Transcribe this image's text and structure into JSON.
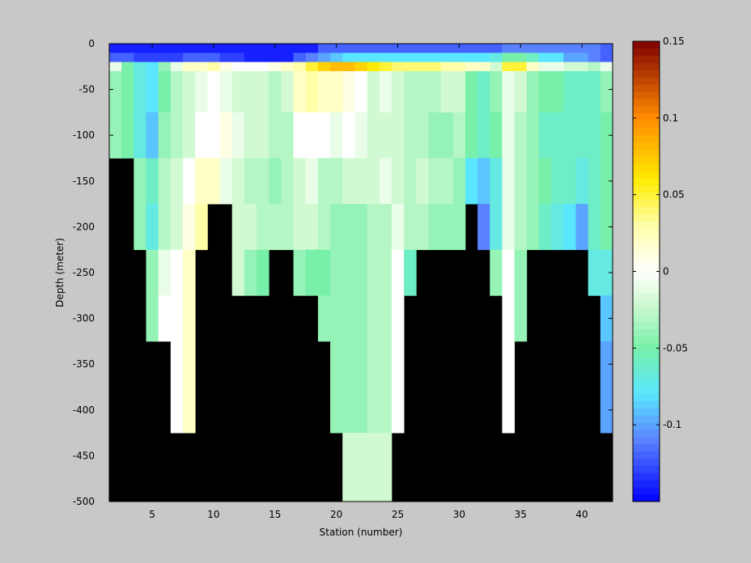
{
  "chart_data": {
    "type": "heatmap",
    "title": "",
    "xlabel": "Station (number)",
    "ylabel": "Depth (meter)",
    "xlim": [
      1.5,
      42.5
    ],
    "ylim": [
      -500,
      0
    ],
    "xticks": [
      5,
      10,
      15,
      20,
      25,
      30,
      35,
      40
    ],
    "yticks": [
      0,
      -50,
      -100,
      -150,
      -200,
      -250,
      -300,
      -350,
      -400,
      -450,
      -500
    ],
    "stations": [
      2,
      3,
      4,
      5,
      6,
      7,
      8,
      9,
      10,
      11,
      12,
      13,
      14,
      15,
      16,
      17,
      18,
      19,
      20,
      21,
      22,
      23,
      24,
      25,
      26,
      27,
      28,
      29,
      30,
      31,
      32,
      33,
      34,
      35,
      36,
      37,
      38,
      39,
      40,
      41,
      42
    ],
    "bottom_depths": [
      -125,
      -125,
      -200,
      -300,
      -300,
      -400,
      -200,
      -150,
      -150,
      -200,
      -250,
      -250,
      -200,
      -200,
      -250,
      -250,
      -300,
      -400,
      -400,
      -500,
      -500,
      -500,
      -500,
      -400,
      -250,
      -200,
      -200,
      -200,
      -150,
      -150,
      -200,
      -250,
      -400,
      -300,
      -200,
      -200,
      -200,
      -200,
      -400,
      -400,
      -400
    ],
    "depth_bins": [
      -5,
      -15,
      -25,
      -50,
      -100,
      -150,
      -200,
      -250,
      -300,
      -350,
      -400,
      -450,
      -500
    ],
    "bin_edges": [
      0,
      -10,
      -20,
      -30,
      -75,
      -125,
      -175,
      -225,
      -275,
      -325,
      -375,
      -425,
      -475,
      -500
    ],
    "values": [
      [
        -0.14,
        -0.14,
        -0.14,
        -0.14,
        -0.14,
        -0.14,
        -0.14,
        -0.14,
        -0.14,
        -0.14,
        -0.14,
        -0.14,
        -0.14,
        -0.14,
        -0.14,
        -0.14,
        -0.14,
        -0.12,
        -0.12,
        -0.12,
        -0.12,
        -0.12,
        -0.12,
        -0.12,
        -0.12,
        -0.12,
        -0.12,
        -0.12,
        -0.12,
        -0.12,
        -0.12,
        -0.12,
        -0.11,
        -0.11,
        -0.11,
        -0.11,
        -0.11,
        -0.11,
        -0.11,
        -0.11,
        -0.12
      ],
      [
        -0.12,
        -0.12,
        -0.13,
        -0.13,
        -0.13,
        -0.13,
        -0.12,
        -0.12,
        -0.12,
        -0.13,
        -0.13,
        -0.14,
        -0.14,
        -0.14,
        -0.14,
        -0.12,
        -0.11,
        -0.1,
        -0.09,
        -0.08,
        -0.08,
        -0.08,
        -0.08,
        -0.08,
        -0.08,
        -0.08,
        -0.08,
        -0.08,
        -0.08,
        -0.08,
        -0.08,
        -0.07,
        -0.05,
        -0.05,
        -0.06,
        -0.08,
        -0.08,
        -0.1,
        -0.1,
        -0.11,
        -0.12
      ],
      [
        -0.01,
        -0.05,
        -0.07,
        -0.08,
        -0.04,
        -0.01,
        0.02,
        0.02,
        0.03,
        0.01,
        0.0,
        0.0,
        0.0,
        0.01,
        0.02,
        0.03,
        0.05,
        0.07,
        0.08,
        0.08,
        0.07,
        0.06,
        0.05,
        0.04,
        0.04,
        0.04,
        0.04,
        0.03,
        0.03,
        0.02,
        0.02,
        -0.02,
        0.05,
        0.05,
        0.02,
        -0.01,
        -0.01,
        -0.02,
        -0.02,
        -0.03,
        -0.01
      ],
      [
        -0.04,
        -0.05,
        -0.07,
        -0.08,
        -0.05,
        -0.03,
        -0.02,
        -0.01,
        0.0,
        -0.01,
        -0.02,
        -0.02,
        -0.02,
        -0.03,
        -0.02,
        0.02,
        0.03,
        0.02,
        0.02,
        0.01,
        0.0,
        -0.02,
        -0.01,
        -0.02,
        -0.03,
        -0.03,
        -0.03,
        -0.02,
        -0.02,
        -0.05,
        -0.06,
        -0.04,
        -0.01,
        -0.02,
        -0.04,
        -0.05,
        -0.05,
        -0.06,
        -0.06,
        -0.06,
        -0.04
      ],
      [
        -0.04,
        -0.05,
        -0.07,
        -0.09,
        -0.04,
        -0.03,
        -0.02,
        0.0,
        0.0,
        0.01,
        -0.01,
        -0.02,
        -0.02,
        -0.03,
        -0.03,
        0.0,
        0.0,
        0.0,
        -0.01,
        0.0,
        -0.01,
        -0.02,
        -0.02,
        -0.02,
        -0.03,
        -0.03,
        -0.04,
        -0.04,
        -0.03,
        -0.05,
        -0.06,
        -0.05,
        -0.01,
        -0.03,
        -0.04,
        -0.06,
        -0.06,
        -0.06,
        -0.06,
        -0.06,
        -0.05
      ],
      [
        null,
        null,
        -0.04,
        -0.06,
        -0.03,
        -0.02,
        0.0,
        0.02,
        0.02,
        -0.01,
        -0.02,
        -0.03,
        -0.03,
        -0.04,
        -0.03,
        -0.02,
        -0.01,
        -0.03,
        -0.03,
        -0.02,
        -0.02,
        -0.02,
        -0.01,
        -0.02,
        -0.03,
        -0.02,
        -0.03,
        -0.03,
        -0.04,
        -0.08,
        -0.09,
        -0.07,
        -0.01,
        -0.03,
        -0.04,
        -0.05,
        -0.06,
        -0.06,
        -0.07,
        -0.06,
        -0.05
      ],
      [
        null,
        null,
        -0.04,
        -0.07,
        -0.03,
        -0.02,
        0.01,
        0.03,
        null,
        null,
        -0.02,
        -0.02,
        -0.03,
        -0.03,
        -0.03,
        -0.02,
        -0.02,
        -0.03,
        -0.04,
        -0.04,
        -0.04,
        -0.03,
        -0.03,
        -0.01,
        -0.03,
        -0.03,
        -0.04,
        -0.04,
        -0.04,
        null,
        -0.11,
        -0.07,
        -0.01,
        -0.03,
        -0.04,
        -0.06,
        -0.07,
        -0.08,
        -0.1,
        -0.06,
        -0.05
      ],
      [
        null,
        null,
        null,
        -0.04,
        -0.01,
        0.0,
        0.02,
        null,
        null,
        null,
        -0.02,
        -0.04,
        -0.05,
        null,
        null,
        -0.04,
        -0.05,
        -0.05,
        -0.04,
        -0.04,
        -0.04,
        -0.03,
        -0.03,
        0.0,
        -0.06,
        null,
        null,
        null,
        null,
        null,
        null,
        -0.04,
        0.0,
        -0.04,
        null,
        null,
        null,
        null,
        null,
        -0.07,
        -0.07
      ],
      [
        null,
        null,
        null,
        -0.04,
        0.0,
        0.0,
        0.02,
        null,
        null,
        null,
        null,
        null,
        null,
        null,
        null,
        null,
        null,
        -0.04,
        -0.04,
        -0.04,
        -0.04,
        -0.03,
        -0.03,
        0.0,
        null,
        null,
        null,
        null,
        null,
        null,
        null,
        null,
        0.0,
        -0.04,
        null,
        null,
        null,
        null,
        null,
        null,
        -0.09
      ],
      [
        null,
        null,
        null,
        null,
        null,
        0.0,
        0.02,
        null,
        null,
        null,
        null,
        null,
        null,
        null,
        null,
        null,
        null,
        null,
        -0.04,
        -0.04,
        -0.04,
        -0.03,
        -0.03,
        0.0,
        null,
        null,
        null,
        null,
        null,
        null,
        null,
        null,
        0.0,
        null,
        null,
        null,
        null,
        null,
        null,
        null,
        -0.1
      ],
      [
        null,
        null,
        null,
        null,
        null,
        0.0,
        0.02,
        null,
        null,
        null,
        null,
        null,
        null,
        null,
        null,
        null,
        null,
        null,
        -0.04,
        -0.04,
        -0.04,
        -0.03,
        -0.03,
        0.0,
        null,
        null,
        null,
        null,
        null,
        null,
        null,
        null,
        0.0,
        null,
        null,
        null,
        null,
        null,
        null,
        null,
        -0.1
      ],
      [
        null,
        null,
        null,
        null,
        null,
        null,
        null,
        null,
        null,
        null,
        null,
        null,
        null,
        null,
        null,
        null,
        null,
        null,
        null,
        -0.02,
        -0.02,
        -0.02,
        -0.02,
        null,
        null,
        null,
        null,
        null,
        null,
        null,
        null,
        null,
        null,
        null,
        null,
        null,
        null,
        null,
        null,
        null,
        null
      ],
      [
        null,
        null,
        null,
        null,
        null,
        null,
        null,
        null,
        null,
        null,
        null,
        null,
        null,
        null,
        null,
        null,
        null,
        null,
        null,
        -0.02,
        -0.02,
        -0.02,
        -0.02,
        null,
        null,
        null,
        null,
        null,
        null,
        null,
        null,
        null,
        null,
        null,
        null,
        null,
        null,
        null,
        null,
        null,
        null
      ]
    ],
    "colorbar": {
      "range": [
        -0.15,
        0.15
      ],
      "ticks": [
        0.15,
        0.1,
        0.05,
        0,
        -0.05,
        -0.1
      ],
      "tick_labels": [
        "0.15",
        "0.1",
        "0.05",
        "0",
        "-0.05",
        "-0.1"
      ]
    },
    "colors": {
      "background": "#c8c8c8",
      "axes_background": "#000000",
      "nan": "#000000"
    }
  }
}
